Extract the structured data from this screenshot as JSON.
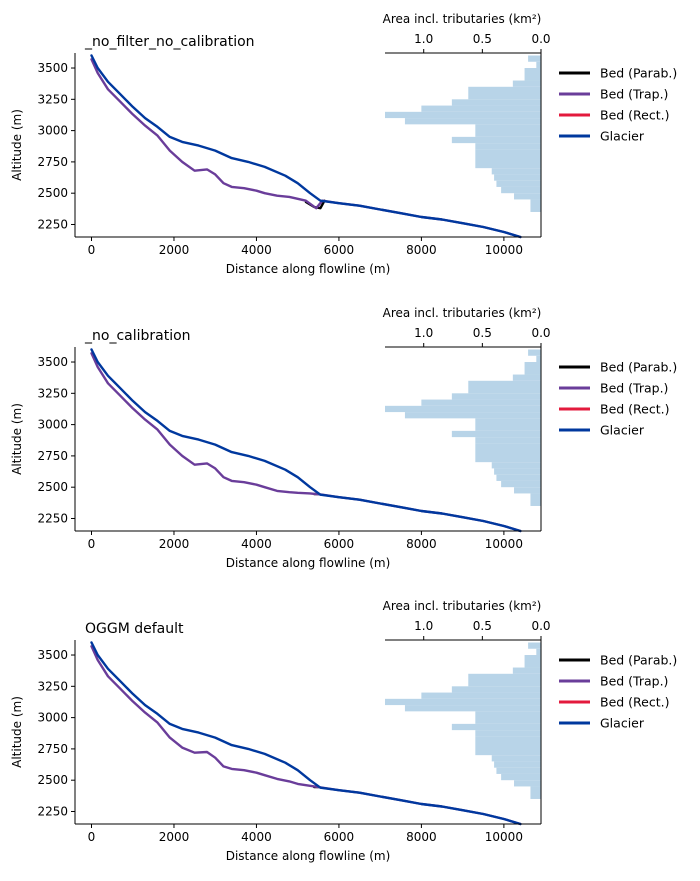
{
  "chart_data": [
    {
      "type": "line",
      "title": "_no_filter_no_calibration",
      "xlabel": "Distance along flowline (m)",
      "ylabel": "Altitude (m)",
      "xlim": [
        -400,
        10900
      ],
      "ylim": [
        2150,
        3620
      ],
      "x_ticks": [
        0,
        2000,
        4000,
        6000,
        8000,
        10000
      ],
      "y_ticks": [
        2250,
        2500,
        2750,
        3000,
        3250,
        3500
      ],
      "hist_axis_label": "Area incl. tributaries (km²)",
      "hist_ticks": [
        1.0,
        0.5,
        0.0
      ],
      "hist_xlim": [
        1.33,
        0.0
      ],
      "hist_bins": [
        {
          "y0": 3550,
          "y1": 3600,
          "area": 0.11
        },
        {
          "y0": 3500,
          "y1": 3550,
          "area": 0.04
        },
        {
          "y0": 3400,
          "y1": 3500,
          "area": 0.14
        },
        {
          "y0": 3350,
          "y1": 3400,
          "area": 0.24
        },
        {
          "y0": 3250,
          "y1": 3350,
          "area": 0.62
        },
        {
          "y0": 3200,
          "y1": 3250,
          "area": 0.76
        },
        {
          "y0": 3150,
          "y1": 3200,
          "area": 1.02
        },
        {
          "y0": 3100,
          "y1": 3150,
          "area": 1.33
        },
        {
          "y0": 3050,
          "y1": 3100,
          "area": 1.16
        },
        {
          "y0": 2950,
          "y1": 3050,
          "area": 0.56
        },
        {
          "y0": 2900,
          "y1": 2950,
          "area": 0.76
        },
        {
          "y0": 2850,
          "y1": 2900,
          "area": 0.56
        },
        {
          "y0": 2700,
          "y1": 2850,
          "area": 0.56
        },
        {
          "y0": 2650,
          "y1": 2700,
          "area": 0.42
        },
        {
          "y0": 2600,
          "y1": 2650,
          "area": 0.4
        },
        {
          "y0": 2550,
          "y1": 2600,
          "area": 0.38
        },
        {
          "y0": 2500,
          "y1": 2550,
          "area": 0.34
        },
        {
          "y0": 2450,
          "y1": 2500,
          "area": 0.23
        },
        {
          "y0": 2350,
          "y1": 2450,
          "area": 0.09
        }
      ],
      "series": [
        {
          "name": "Bed (Parab.)",
          "color": "#000000",
          "x": [
            5200,
            5400,
            5550,
            5650
          ],
          "y": [
            2430,
            2390,
            2380,
            2440
          ]
        },
        {
          "name": "Bed (Trap.)",
          "color": "#6a3d9a",
          "x": [
            0,
            150,
            400,
            700,
            1000,
            1300,
            1600,
            1900,
            2200,
            2500,
            2800,
            3000,
            3200,
            3400,
            3700,
            4000,
            4200,
            4500,
            4800,
            5000,
            5200,
            5450,
            5600,
            6000,
            6500,
            7000,
            7500,
            8000,
            8500,
            9000,
            9500,
            10000,
            10400
          ],
          "y": [
            3570,
            3460,
            3330,
            3230,
            3130,
            3040,
            2960,
            2840,
            2750,
            2680,
            2690,
            2650,
            2580,
            2550,
            2540,
            2520,
            2500,
            2480,
            2470,
            2455,
            2440,
            2380,
            2440,
            2420,
            2400,
            2370,
            2340,
            2310,
            2290,
            2260,
            2230,
            2190,
            2150
          ]
        },
        {
          "name": "Bed (Rect.)",
          "color": "#e31a3c",
          "x": [],
          "y": []
        },
        {
          "name": "Glacier",
          "color": "#00389e",
          "x": [
            0,
            150,
            400,
            700,
            1000,
            1300,
            1600,
            1900,
            2200,
            2600,
            3000,
            3400,
            3800,
            4200,
            4700,
            5000,
            5300,
            5550,
            6000,
            6500,
            7000,
            7500,
            8000,
            8500,
            9000,
            9500,
            10000,
            10400
          ],
          "y": [
            3600,
            3500,
            3390,
            3290,
            3190,
            3100,
            3030,
            2950,
            2910,
            2880,
            2840,
            2780,
            2750,
            2710,
            2640,
            2580,
            2500,
            2440,
            2420,
            2400,
            2370,
            2340,
            2310,
            2290,
            2260,
            2230,
            2190,
            2150
          ]
        }
      ],
      "legend": {
        "placement": "right-upper",
        "items": [
          "Bed (Parab.)",
          "Bed (Trap.)",
          "Bed (Rect.)",
          "Glacier"
        ]
      }
    },
    {
      "type": "line",
      "title": "_no_calibration",
      "xlabel": "Distance along flowline (m)",
      "ylabel": "Altitude (m)",
      "xlim": [
        -400,
        10900
      ],
      "ylim": [
        2150,
        3620
      ],
      "x_ticks": [
        0,
        2000,
        4000,
        6000,
        8000,
        10000
      ],
      "y_ticks": [
        2250,
        2500,
        2750,
        3000,
        3250,
        3500
      ],
      "hist_axis_label": "Area incl. tributaries (km²)",
      "hist_ticks": [
        1.0,
        0.5,
        0.0
      ],
      "hist_xlim": [
        1.33,
        0.0
      ],
      "hist_bins": [
        {
          "y0": 3550,
          "y1": 3600,
          "area": 0.11
        },
        {
          "y0": 3500,
          "y1": 3550,
          "area": 0.04
        },
        {
          "y0": 3400,
          "y1": 3500,
          "area": 0.14
        },
        {
          "y0": 3350,
          "y1": 3400,
          "area": 0.24
        },
        {
          "y0": 3250,
          "y1": 3350,
          "area": 0.62
        },
        {
          "y0": 3200,
          "y1": 3250,
          "area": 0.76
        },
        {
          "y0": 3150,
          "y1": 3200,
          "area": 1.02
        },
        {
          "y0": 3100,
          "y1": 3150,
          "area": 1.33
        },
        {
          "y0": 3050,
          "y1": 3100,
          "area": 1.16
        },
        {
          "y0": 2950,
          "y1": 3050,
          "area": 0.56
        },
        {
          "y0": 2900,
          "y1": 2950,
          "area": 0.76
        },
        {
          "y0": 2850,
          "y1": 2900,
          "area": 0.56
        },
        {
          "y0": 2700,
          "y1": 2850,
          "area": 0.56
        },
        {
          "y0": 2650,
          "y1": 2700,
          "area": 0.42
        },
        {
          "y0": 2600,
          "y1": 2650,
          "area": 0.4
        },
        {
          "y0": 2550,
          "y1": 2600,
          "area": 0.38
        },
        {
          "y0": 2500,
          "y1": 2550,
          "area": 0.34
        },
        {
          "y0": 2450,
          "y1": 2500,
          "area": 0.23
        },
        {
          "y0": 2350,
          "y1": 2450,
          "area": 0.09
        }
      ],
      "series": [
        {
          "name": "Bed (Parab.)",
          "color": "#000000",
          "x": [
            5400,
            5500
          ],
          "y": [
            2445,
            2445
          ]
        },
        {
          "name": "Bed (Trap.)",
          "color": "#6a3d9a",
          "x": [
            0,
            150,
            400,
            700,
            1000,
            1300,
            1600,
            1900,
            2200,
            2500,
            2800,
            3000,
            3200,
            3400,
            3700,
            4000,
            4200,
            4500,
            4800,
            5000,
            5300,
            5600,
            6000,
            6500,
            7000,
            7500,
            8000,
            8500,
            9000,
            9500,
            10000,
            10400
          ],
          "y": [
            3570,
            3460,
            3330,
            3230,
            3130,
            3040,
            2960,
            2840,
            2750,
            2680,
            2690,
            2650,
            2580,
            2550,
            2540,
            2520,
            2500,
            2470,
            2460,
            2455,
            2450,
            2440,
            2420,
            2400,
            2370,
            2340,
            2310,
            2290,
            2260,
            2230,
            2190,
            2150
          ]
        },
        {
          "name": "Bed (Rect.)",
          "color": "#e31a3c",
          "x": [],
          "y": []
        },
        {
          "name": "Glacier",
          "color": "#00389e",
          "x": [
            0,
            150,
            400,
            700,
            1000,
            1300,
            1600,
            1900,
            2200,
            2600,
            3000,
            3400,
            3800,
            4200,
            4700,
            5000,
            5300,
            5550,
            6000,
            6500,
            7000,
            7500,
            8000,
            8500,
            9000,
            9500,
            10000,
            10400
          ],
          "y": [
            3600,
            3500,
            3390,
            3290,
            3190,
            3100,
            3030,
            2950,
            2910,
            2880,
            2840,
            2780,
            2750,
            2710,
            2640,
            2580,
            2500,
            2440,
            2420,
            2400,
            2370,
            2340,
            2310,
            2290,
            2260,
            2230,
            2190,
            2150
          ]
        }
      ],
      "legend": {
        "placement": "right-upper",
        "items": [
          "Bed (Parab.)",
          "Bed (Trap.)",
          "Bed (Rect.)",
          "Glacier"
        ]
      }
    },
    {
      "type": "line",
      "title": "OGGM default",
      "xlabel": "Distance along flowline (m)",
      "ylabel": "Altitude (m)",
      "xlim": [
        -400,
        10900
      ],
      "ylim": [
        2150,
        3620
      ],
      "x_ticks": [
        0,
        2000,
        4000,
        6000,
        8000,
        10000
      ],
      "y_ticks": [
        2250,
        2500,
        2750,
        3000,
        3250,
        3500
      ],
      "hist_axis_label": "Area incl. tributaries (km²)",
      "hist_ticks": [
        1.0,
        0.5,
        0.0
      ],
      "hist_xlim": [
        1.33,
        0.0
      ],
      "hist_bins": [
        {
          "y0": 3550,
          "y1": 3600,
          "area": 0.11
        },
        {
          "y0": 3500,
          "y1": 3550,
          "area": 0.04
        },
        {
          "y0": 3400,
          "y1": 3500,
          "area": 0.14
        },
        {
          "y0": 3350,
          "y1": 3400,
          "area": 0.24
        },
        {
          "y0": 3250,
          "y1": 3350,
          "area": 0.62
        },
        {
          "y0": 3200,
          "y1": 3250,
          "area": 0.76
        },
        {
          "y0": 3150,
          "y1": 3200,
          "area": 1.02
        },
        {
          "y0": 3100,
          "y1": 3150,
          "area": 1.33
        },
        {
          "y0": 3050,
          "y1": 3100,
          "area": 1.16
        },
        {
          "y0": 2950,
          "y1": 3050,
          "area": 0.56
        },
        {
          "y0": 2900,
          "y1": 2950,
          "area": 0.76
        },
        {
          "y0": 2850,
          "y1": 2900,
          "area": 0.56
        },
        {
          "y0": 2700,
          "y1": 2850,
          "area": 0.56
        },
        {
          "y0": 2650,
          "y1": 2700,
          "area": 0.42
        },
        {
          "y0": 2600,
          "y1": 2650,
          "area": 0.4
        },
        {
          "y0": 2550,
          "y1": 2600,
          "area": 0.38
        },
        {
          "y0": 2500,
          "y1": 2550,
          "area": 0.34
        },
        {
          "y0": 2450,
          "y1": 2500,
          "area": 0.23
        },
        {
          "y0": 2350,
          "y1": 2450,
          "area": 0.09
        }
      ],
      "series": [
        {
          "name": "Bed (Parab.)",
          "color": "#000000",
          "x": [
            5400,
            5500
          ],
          "y": [
            2445,
            2445
          ]
        },
        {
          "name": "Bed (Trap.)",
          "color": "#6a3d9a",
          "x": [
            0,
            150,
            400,
            700,
            1000,
            1300,
            1600,
            1900,
            2200,
            2500,
            2800,
            3000,
            3200,
            3400,
            3700,
            4000,
            4200,
            4500,
            4800,
            5000,
            5300,
            5600,
            6000,
            6500,
            7000,
            7500,
            8000,
            8500,
            9000,
            9500,
            10000,
            10400
          ],
          "y": [
            3570,
            3460,
            3330,
            3230,
            3130,
            3040,
            2960,
            2840,
            2760,
            2720,
            2725,
            2680,
            2610,
            2590,
            2580,
            2560,
            2540,
            2510,
            2490,
            2470,
            2455,
            2440,
            2420,
            2400,
            2370,
            2340,
            2310,
            2290,
            2260,
            2230,
            2190,
            2150
          ]
        },
        {
          "name": "Bed (Rect.)",
          "color": "#e31a3c",
          "x": [],
          "y": []
        },
        {
          "name": "Glacier",
          "color": "#00389e",
          "x": [
            0,
            150,
            400,
            700,
            1000,
            1300,
            1600,
            1900,
            2200,
            2600,
            3000,
            3400,
            3800,
            4200,
            4700,
            5000,
            5300,
            5550,
            6000,
            6500,
            7000,
            7500,
            8000,
            8500,
            9000,
            9500,
            10000,
            10400
          ],
          "y": [
            3600,
            3500,
            3390,
            3290,
            3190,
            3100,
            3030,
            2950,
            2910,
            2880,
            2840,
            2780,
            2750,
            2710,
            2640,
            2580,
            2500,
            2440,
            2420,
            2400,
            2370,
            2340,
            2310,
            2290,
            2260,
            2230,
            2190,
            2150
          ]
        }
      ],
      "legend": {
        "placement": "right-upper",
        "items": [
          "Bed (Parab.)",
          "Bed (Trap.)",
          "Bed (Rect.)",
          "Glacier"
        ]
      }
    }
  ]
}
